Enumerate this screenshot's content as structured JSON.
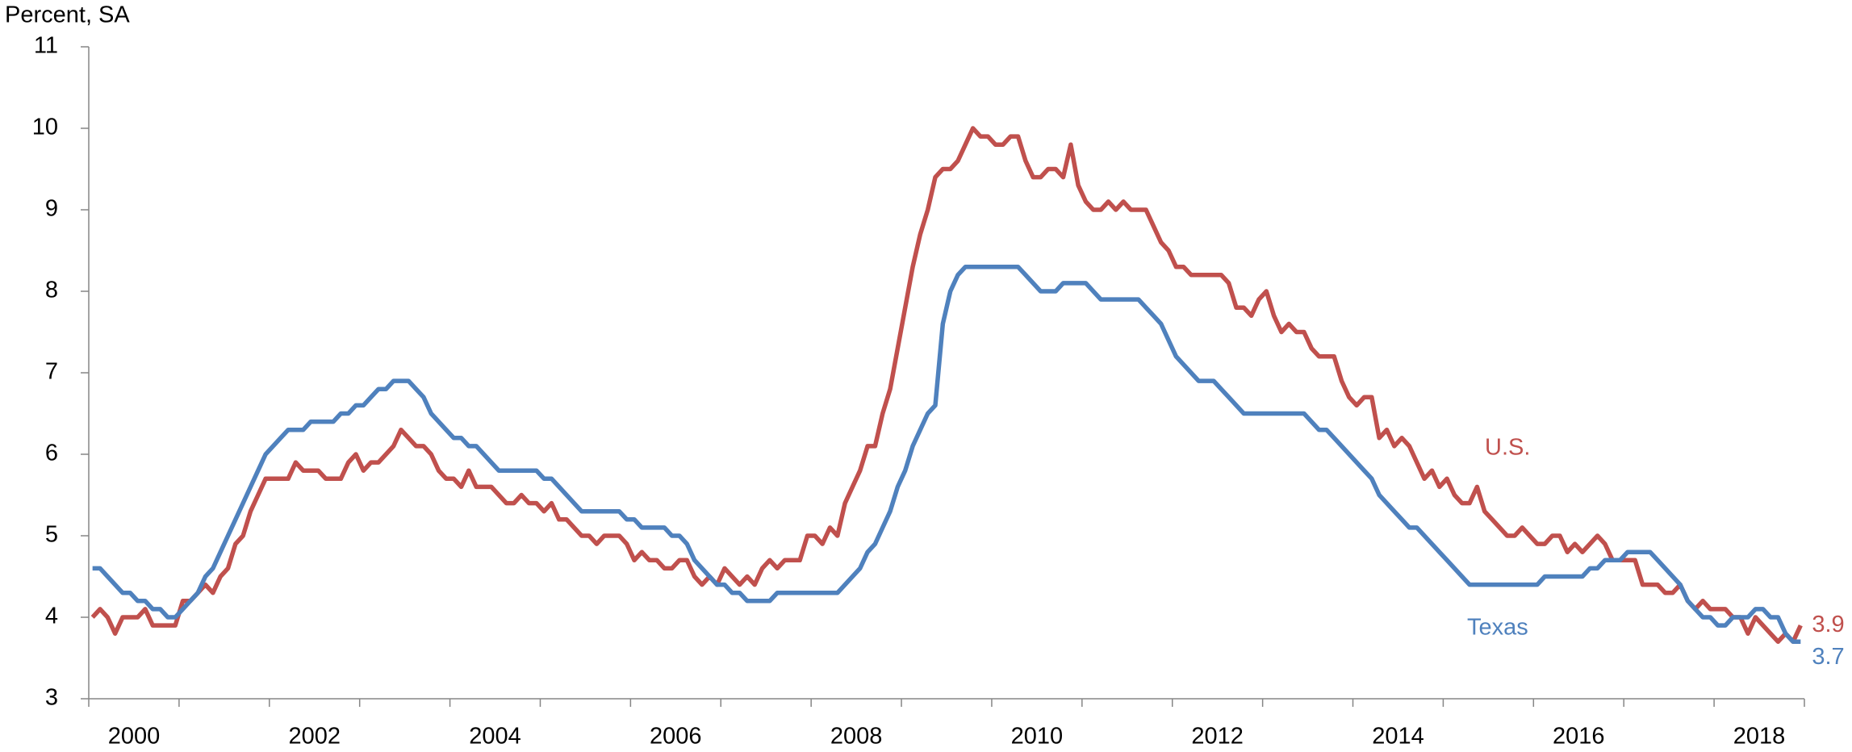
{
  "chart_data": {
    "type": "line",
    "y_label": "Percent, SA",
    "categories": [
      "2000",
      null,
      null,
      null,
      null,
      null,
      null,
      null,
      null,
      null,
      null,
      null,
      null,
      null,
      null,
      null,
      null,
      null,
      null,
      null,
      null,
      null,
      null,
      null,
      "2002",
      null,
      null,
      null,
      null,
      null,
      null,
      null,
      null,
      null,
      null,
      null,
      null,
      null,
      null,
      null,
      null,
      null,
      null,
      null,
      null,
      null,
      null,
      null,
      "2004",
      null,
      null,
      null,
      null,
      null,
      null,
      null,
      null,
      null,
      null,
      null,
      null,
      null,
      null,
      null,
      null,
      null,
      null,
      null,
      null,
      null,
      null,
      null,
      "2006",
      null,
      null,
      null,
      null,
      null,
      null,
      null,
      null,
      null,
      null,
      null,
      null,
      null,
      null,
      null,
      null,
      null,
      null,
      null,
      null,
      null,
      null,
      null,
      "2008",
      null,
      null,
      null,
      null,
      null,
      null,
      null,
      null,
      null,
      null,
      null,
      null,
      null,
      null,
      null,
      null,
      null,
      null,
      null,
      null,
      null,
      null,
      null,
      "2010",
      null,
      null,
      null,
      null,
      null,
      null,
      null,
      null,
      null,
      null,
      null,
      null,
      null,
      null,
      null,
      null,
      null,
      null,
      null,
      null,
      null,
      null,
      null,
      "2012",
      null,
      null,
      null,
      null,
      null,
      null,
      null,
      null,
      null,
      null,
      null,
      null,
      null,
      null,
      null,
      null,
      null,
      null,
      null,
      null,
      null,
      null,
      null,
      "2014",
      null,
      null,
      null,
      null,
      null,
      null,
      null,
      null,
      null,
      null,
      null,
      null,
      null,
      null,
      null,
      null,
      null,
      null,
      null,
      null,
      null,
      null,
      null,
      "2016",
      null,
      null,
      null,
      null,
      null,
      null,
      null,
      null,
      null,
      null,
      null,
      null,
      null,
      null,
      null,
      null,
      null,
      null,
      null,
      null,
      null,
      null,
      null,
      "2018",
      null,
      null,
      null,
      null,
      null,
      null,
      null,
      null,
      null,
      null,
      null
    ],
    "series": [
      {
        "name": "U.S.",
        "color": "#c0504d",
        "values": [
          4.0,
          4.1,
          4.0,
          3.8,
          4.0,
          4.0,
          4.0,
          4.1,
          3.9,
          3.9,
          3.9,
          3.9,
          4.2,
          4.2,
          4.3,
          4.4,
          4.3,
          4.5,
          4.6,
          4.9,
          5.0,
          5.3,
          5.5,
          5.7,
          5.7,
          5.7,
          5.7,
          5.9,
          5.8,
          5.8,
          5.8,
          5.7,
          5.7,
          5.7,
          5.9,
          6.0,
          5.8,
          5.9,
          5.9,
          6.0,
          6.1,
          6.3,
          6.2,
          6.1,
          6.1,
          6.0,
          5.8,
          5.7,
          5.7,
          5.6,
          5.8,
          5.6,
          5.6,
          5.6,
          5.5,
          5.4,
          5.4,
          5.5,
          5.4,
          5.4,
          5.3,
          5.4,
          5.2,
          5.2,
          5.1,
          5.0,
          5.0,
          4.9,
          5.0,
          5.0,
          5.0,
          4.9,
          4.7,
          4.8,
          4.7,
          4.7,
          4.6,
          4.6,
          4.7,
          4.7,
          4.5,
          4.4,
          4.5,
          4.4,
          4.6,
          4.5,
          4.4,
          4.5,
          4.4,
          4.6,
          4.7,
          4.6,
          4.7,
          4.7,
          4.7,
          5.0,
          5.0,
          4.9,
          5.1,
          5.0,
          5.4,
          5.6,
          5.8,
          6.1,
          6.1,
          6.5,
          6.8,
          7.3,
          7.8,
          8.3,
          8.7,
          9.0,
          9.4,
          9.5,
          9.5,
          9.6,
          9.8,
          10.0,
          9.9,
          9.9,
          9.8,
          9.8,
          9.9,
          9.9,
          9.6,
          9.4,
          9.4,
          9.5,
          9.5,
          9.4,
          9.8,
          9.3,
          9.1,
          9.0,
          9.0,
          9.1,
          9.0,
          9.1,
          9.0,
          9.0,
          9.0,
          8.8,
          8.6,
          8.5,
          8.3,
          8.3,
          8.2,
          8.2,
          8.2,
          8.2,
          8.2,
          8.1,
          7.8,
          7.8,
          7.7,
          7.9,
          8.0,
          7.7,
          7.5,
          7.6,
          7.5,
          7.5,
          7.3,
          7.2,
          7.2,
          7.2,
          6.9,
          6.7,
          6.6,
          6.7,
          6.7,
          6.2,
          6.3,
          6.1,
          6.2,
          6.1,
          5.9,
          5.7,
          5.8,
          5.6,
          5.7,
          5.5,
          5.4,
          5.4,
          5.6,
          5.3,
          5.2,
          5.1,
          5.0,
          5.0,
          5.1,
          5.0,
          4.9,
          4.9,
          5.0,
          5.0,
          4.8,
          4.9,
          4.8,
          4.9,
          5.0,
          4.9,
          4.7,
          4.7,
          4.7,
          4.7,
          4.4,
          4.4,
          4.4,
          4.3,
          4.3,
          4.4,
          4.2,
          4.1,
          4.2,
          4.1,
          4.1,
          4.1,
          4.0,
          4.0,
          3.8,
          4.0,
          3.9,
          3.8,
          3.7,
          3.8,
          3.7,
          3.9
        ]
      },
      {
        "name": "Texas",
        "color": "#4f81bd",
        "values": [
          4.6,
          4.6,
          4.5,
          4.4,
          4.3,
          4.3,
          4.2,
          4.2,
          4.1,
          4.1,
          4.0,
          4.0,
          4.1,
          4.2,
          4.3,
          4.5,
          4.6,
          4.8,
          5.0,
          5.2,
          5.4,
          5.6,
          5.8,
          6.0,
          6.1,
          6.2,
          6.3,
          6.3,
          6.3,
          6.4,
          6.4,
          6.4,
          6.4,
          6.5,
          6.5,
          6.6,
          6.6,
          6.7,
          6.8,
          6.8,
          6.9,
          6.9,
          6.9,
          6.8,
          6.7,
          6.5,
          6.4,
          6.3,
          6.2,
          6.2,
          6.1,
          6.1,
          6.0,
          5.9,
          5.8,
          5.8,
          5.8,
          5.8,
          5.8,
          5.8,
          5.7,
          5.7,
          5.6,
          5.5,
          5.4,
          5.3,
          5.3,
          5.3,
          5.3,
          5.3,
          5.3,
          5.2,
          5.2,
          5.1,
          5.1,
          5.1,
          5.1,
          5.0,
          5.0,
          4.9,
          4.7,
          4.6,
          4.5,
          4.4,
          4.4,
          4.3,
          4.3,
          4.2,
          4.2,
          4.2,
          4.2,
          4.3,
          4.3,
          4.3,
          4.3,
          4.3,
          4.3,
          4.3,
          4.3,
          4.3,
          4.4,
          4.5,
          4.6,
          4.8,
          4.9,
          5.1,
          5.3,
          5.6,
          5.8,
          6.1,
          6.3,
          6.5,
          6.6,
          7.6,
          8.0,
          8.2,
          8.3,
          8.3,
          8.3,
          8.3,
          8.3,
          8.3,
          8.3,
          8.3,
          8.2,
          8.1,
          8.0,
          8.0,
          8.0,
          8.1,
          8.1,
          8.1,
          8.1,
          8.0,
          7.9,
          7.9,
          7.9,
          7.9,
          7.9,
          7.9,
          7.8,
          7.7,
          7.6,
          7.4,
          7.2,
          7.1,
          7.0,
          6.9,
          6.9,
          6.9,
          6.8,
          6.7,
          6.6,
          6.5,
          6.5,
          6.5,
          6.5,
          6.5,
          6.5,
          6.5,
          6.5,
          6.5,
          6.4,
          6.3,
          6.3,
          6.2,
          6.1,
          6.0,
          5.9,
          5.8,
          5.7,
          5.5,
          5.4,
          5.3,
          5.2,
          5.1,
          5.1,
          5.0,
          4.9,
          4.8,
          4.7,
          4.6,
          4.5,
          4.4,
          4.4,
          4.4,
          4.4,
          4.4,
          4.4,
          4.4,
          4.4,
          4.4,
          4.4,
          4.5,
          4.5,
          4.5,
          4.5,
          4.5,
          4.5,
          4.6,
          4.6,
          4.7,
          4.7,
          4.7,
          4.8,
          4.8,
          4.8,
          4.8,
          4.7,
          4.6,
          4.5,
          4.4,
          4.2,
          4.1,
          4.0,
          4.0,
          3.9,
          3.9,
          4.0,
          4.0,
          4.0,
          4.1,
          4.1,
          4.0,
          4.0,
          3.8,
          3.7,
          3.7
        ]
      }
    ],
    "ylim": [
      3,
      11
    ],
    "yticks": [
      3,
      4,
      5,
      6,
      7,
      8,
      9,
      10,
      11
    ],
    "grid": false
  }
}
